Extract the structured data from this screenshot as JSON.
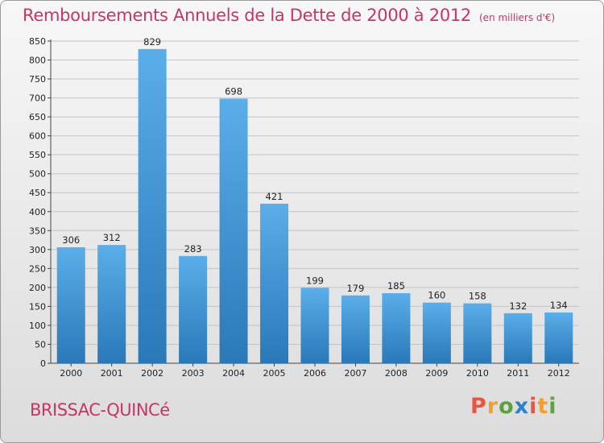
{
  "chart_data": {
    "type": "bar",
    "title": "Remboursements Annuels de la Dette de 2000 à 2012",
    "unit": "(en milliers d'€)",
    "categories": [
      "2000",
      "2001",
      "2002",
      "2003",
      "2004",
      "2005",
      "2006",
      "2007",
      "2008",
      "2009",
      "2010",
      "2011",
      "2012"
    ],
    "values": [
      306,
      312,
      829,
      283,
      698,
      421,
      199,
      179,
      185,
      160,
      158,
      132,
      134
    ],
    "ylim": [
      0,
      850
    ],
    "ytick_step": 50,
    "grid": true,
    "bar_color": "#3b93d6"
  },
  "footer": {
    "commune": "BRISSAC-QUINCé",
    "brand_letters": [
      "P",
      "r",
      "o",
      "x",
      "i",
      "t",
      "i"
    ],
    "brand_colors": [
      "#e8573d",
      "#f0a030",
      "#5aa33a",
      "#2f7fd0",
      "#e8573d",
      "#f0a030",
      "#5aa33a"
    ]
  }
}
